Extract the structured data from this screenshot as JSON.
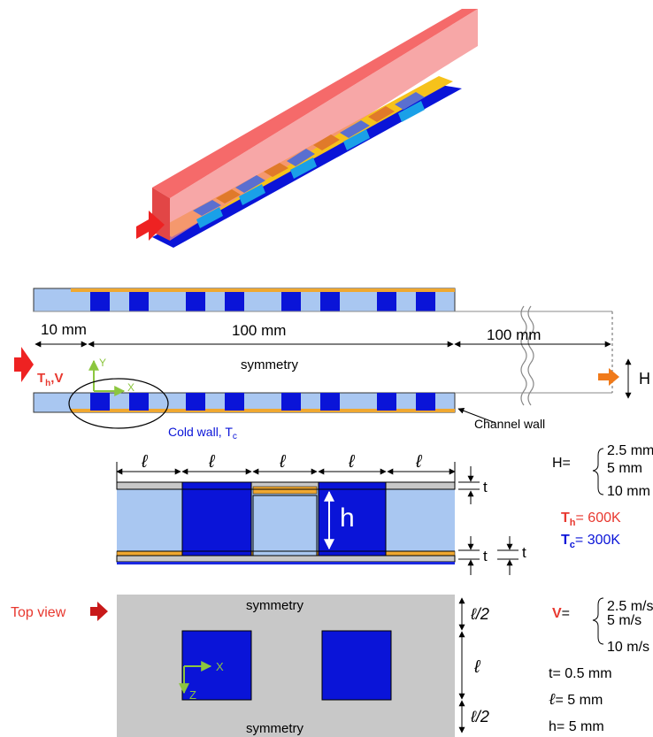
{
  "channel_section": {
    "dim_inlet": "10 mm",
    "dim_tegs": "100 mm",
    "dim_outlet": "100 mm",
    "symmetry_label": "symmetry",
    "inlet_label_main": "T",
    "inlet_label_sub": "h",
    "inlet_label_tail": ",V",
    "axis_y": "Y",
    "axis_x": "X",
    "cold_wall_label": "Cold wall, T",
    "cold_wall_sub": "c",
    "channel_wall_label": "Channel wall",
    "height_label": "H"
  },
  "unit_cell": {
    "ell": "ℓ",
    "h_label": "h",
    "t_label": "t"
  },
  "top_view": {
    "title": "Top view",
    "symmetry_top": "symmetry",
    "symmetry_bottom": "symmetry",
    "half_ell": "ℓ/2",
    "ell": "ℓ",
    "axis_x": "X",
    "axis_z": "Z"
  },
  "parameters": {
    "H_prefix": "H=",
    "H_values": [
      "2.5 mm",
      "5 mm",
      "10 mm"
    ],
    "Th_main": "T",
    "Th_sub": "h",
    "Th_value": "= 600K",
    "Tc_main": "T",
    "Tc_sub": "c",
    "Tc_value": "= 300K",
    "V_prefix": "V",
    "V_eq": "=",
    "V_values": [
      "2.5 m/s",
      "5 m/s",
      "10 m/s"
    ],
    "t_line": "t= 0.5 mm",
    "ell_symbol": "ℓ",
    "ell_value": "= 5 mm",
    "h_line": "h= 5 mm"
  },
  "colors": {
    "hot_red": "#e8382f",
    "duct_red": "#f06a6a",
    "cold_blue": "#0a14d8",
    "light_blue": "#a9c7f1",
    "orange": "#f0a830",
    "gray": "#c8c8c8",
    "accent_green": "#8cc63f",
    "flow_orange": "#f07a1a"
  }
}
